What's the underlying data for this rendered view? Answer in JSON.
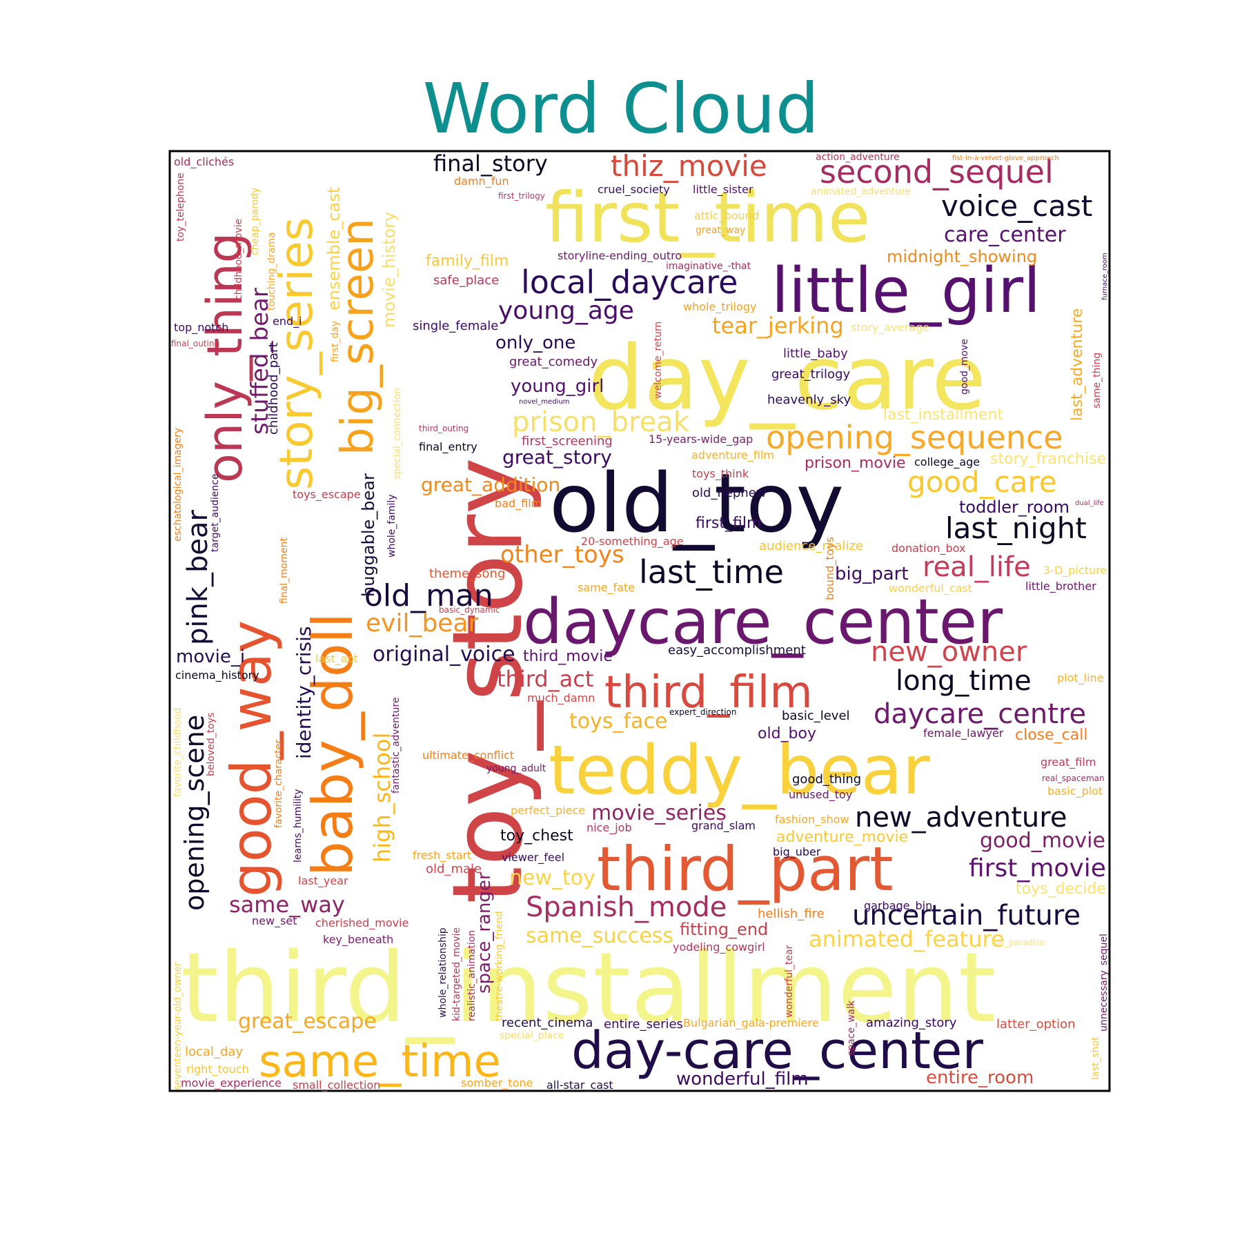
{
  "title": "Word Cloud",
  "chart_data": {
    "type": "word_cloud",
    "title": "Word Cloud",
    "colormap": "inferno",
    "frame": true,
    "words": [
      {
        "text": "toy_story",
        "weight": 100,
        "color": "#cf4446"
      },
      {
        "text": "third_installment",
        "weight": 90,
        "color": "#f3f58a"
      },
      {
        "text": "day_care",
        "weight": 82,
        "color": "#f3e55d"
      },
      {
        "text": "old_toy",
        "weight": 78,
        "color": "#120a30"
      },
      {
        "text": "first_time",
        "weight": 66,
        "color": "#f0e25a"
      },
      {
        "text": "teddy_bear",
        "weight": 64,
        "color": "#f8d13c"
      },
      {
        "text": "daycare_center",
        "weight": 60,
        "color": "#6a176e"
      },
      {
        "text": "little_girl",
        "weight": 58,
        "color": "#56106e"
      },
      {
        "text": "third_part",
        "weight": 55,
        "color": "#e35933"
      },
      {
        "text": "good_way",
        "weight": 54,
        "color": "#e5542f"
      },
      {
        "text": "baby_doll",
        "weight": 50,
        "color": "#f57d15"
      },
      {
        "text": "day-care_center",
        "weight": 46,
        "color": "#1f0c48"
      },
      {
        "text": "only_thing",
        "weight": 44,
        "color": "#bc3754"
      },
      {
        "text": "story_series",
        "weight": 42,
        "color": "#f9c932"
      },
      {
        "text": "big_screen",
        "weight": 42,
        "color": "#f7a21d"
      },
      {
        "text": "third_film",
        "weight": 40,
        "color": "#d84a3f"
      },
      {
        "text": "same_time",
        "weight": 40,
        "color": "#fbb61a"
      },
      {
        "text": "second_sequel",
        "weight": 30,
        "color": "#a52c60"
      },
      {
        "text": "local_daycare",
        "weight": 30,
        "color": "#2a0b5a"
      },
      {
        "text": "opening_sequence",
        "weight": 30,
        "color": "#f9a825"
      },
      {
        "text": "thiz_movie",
        "weight": 28,
        "color": "#d54a3b"
      },
      {
        "text": "last_time",
        "weight": 28,
        "color": "#0b0724"
      },
      {
        "text": "old_man",
        "weight": 28,
        "color": "#190b3f"
      },
      {
        "text": "pink_bear",
        "weight": 27,
        "color": "#150b37"
      },
      {
        "text": "prison_break",
        "weight": 26,
        "color": "#f6df6a"
      },
      {
        "text": "opening_scene",
        "weight": 26,
        "color": "#0d0827"
      },
      {
        "text": "voice_cast",
        "weight": 25,
        "color": "#120a2d"
      },
      {
        "text": "good_care",
        "weight": 25,
        "color": "#f8c830"
      },
      {
        "text": "last_night",
        "weight": 25,
        "color": "#0a0723"
      },
      {
        "text": "real_life",
        "weight": 25,
        "color": "#c5395a"
      },
      {
        "text": "new_owner",
        "weight": 25,
        "color": "#d0454c"
      },
      {
        "text": "long_time",
        "weight": 25,
        "color": "#0a0722"
      },
      {
        "text": "daycare_centre",
        "weight": 25,
        "color": "#6e196e"
      },
      {
        "text": "new_adventure",
        "weight": 25,
        "color": "#0c0826"
      },
      {
        "text": "Spanish_mode",
        "weight": 25,
        "color": "#a62d60"
      },
      {
        "text": "uncertain_future",
        "weight": 25,
        "color": "#1a0b3f"
      },
      {
        "text": "stuffed_bear",
        "weight": 22,
        "color": "#731a6e"
      },
      {
        "text": "young_age",
        "weight": 22,
        "color": "#4b0c6b"
      },
      {
        "text": "evil_bear",
        "weight": 22,
        "color": "#f7921a"
      },
      {
        "text": "other_toys",
        "weight": 22,
        "color": "#f48418"
      },
      {
        "text": "third_act",
        "weight": 22,
        "color": "#c83f4b"
      },
      {
        "text": "same_way",
        "weight": 22,
        "color": "#8d2369"
      },
      {
        "text": "great_escape",
        "weight": 22,
        "color": "#f8a722"
      },
      {
        "text": "identity_crisis",
        "weight": 21,
        "color": "#240c4f"
      },
      {
        "text": "high_school",
        "weight": 21,
        "color": "#fbb61a"
      },
      {
        "text": "wonderful_film",
        "weight": 20,
        "color": "#3d0965"
      },
      {
        "text": "entire_room",
        "weight": 20,
        "color": "#d84c3e"
      },
      {
        "text": "first_movie",
        "weight": 22,
        "color": "#5c126e"
      },
      {
        "text": "good_movie",
        "weight": 20,
        "color": "#7b1d6c"
      },
      {
        "text": "animated_feature",
        "weight": 22,
        "color": "#fcd247"
      },
      {
        "text": "movie_series",
        "weight": 21,
        "color": "#912568"
      },
      {
        "text": "new_toy",
        "weight": 21,
        "color": "#f9d342"
      },
      {
        "text": "same_success",
        "weight": 21,
        "color": "#f6d345"
      },
      {
        "text": "toys_face",
        "weight": 21,
        "color": "#f7b125"
      },
      {
        "text": "great_addition",
        "weight": 20,
        "color": "#f08a1a"
      },
      {
        "text": "great_story",
        "weight": 20,
        "color": "#3d0965"
      },
      {
        "text": "space_ranger",
        "weight": 17,
        "color": "#7b1d6c"
      },
      {
        "text": "huggable_bear",
        "weight": 16,
        "color": "#160b39"
      },
      {
        "text": "final_story",
        "weight": 22,
        "color": "#0a0722"
      },
      {
        "text": "care_center",
        "weight": 20,
        "color": "#56106e"
      },
      {
        "text": "midnight_showing",
        "weight": 17,
        "color": "#f08a1a"
      },
      {
        "text": "tear_jerking",
        "weight": 20,
        "color": "#f7a21d"
      },
      {
        "text": "only_one",
        "weight": 17,
        "color": "#280b54"
      },
      {
        "text": "young_girl",
        "weight": 17,
        "color": "#51106e"
      },
      {
        "text": "original_voice",
        "weight": 20,
        "color": "#240c4f"
      },
      {
        "text": "movie_i",
        "weight": 17,
        "color": "#240c4f"
      },
      {
        "text": "last_adventure",
        "weight": 16,
        "color": "#f7a91e"
      },
      {
        "text": "big_part",
        "weight": 16,
        "color": "#3a0963"
      },
      {
        "text": "toddler_room",
        "weight": 16,
        "color": "#380962"
      },
      {
        "text": "story_franchise",
        "weight": 15,
        "color": "#fbe36e"
      },
      {
        "text": "fitting_end",
        "weight": 16,
        "color": "#c83f4b"
      },
      {
        "text": "ensemble_cast",
        "weight": 16,
        "color": "#fbd145"
      },
      {
        "text": "movie_history",
        "weight": 16,
        "color": "#f9dd6b"
      },
      {
        "text": "childhood_part",
        "weight": 12,
        "color": "#2f0a5b"
      },
      {
        "text": "family_film",
        "weight": 14,
        "color": "#f7c73a"
      },
      {
        "text": "safe_place",
        "weight": 12,
        "color": "#b5365b"
      },
      {
        "text": "single_female",
        "weight": 12,
        "color": "#3d0965"
      },
      {
        "text": "great_comedy",
        "weight": 12,
        "color": "#6a176e"
      },
      {
        "text": "little_baby",
        "weight": 12,
        "color": "#56106e"
      },
      {
        "text": "great_trilogy",
        "weight": 12,
        "color": "#3a0963"
      },
      {
        "text": "heavenly_sky",
        "weight": 12,
        "color": "#2a0b5a"
      },
      {
        "text": "first_screening",
        "weight": 12,
        "color": "#b5365b"
      },
      {
        "text": "15-years-wide_gap",
        "weight": 11,
        "color": "#7b1d6c"
      },
      {
        "text": "adventure_film",
        "weight": 11,
        "color": "#f7b125"
      },
      {
        "text": "prison_movie",
        "weight": 14,
        "color": "#a52c60"
      },
      {
        "text": "college_age",
        "weight": 11,
        "color": "#0d0827"
      },
      {
        "text": "toys_think",
        "weight": 11,
        "color": "#c53c4d"
      },
      {
        "text": "old_nephew",
        "weight": 12,
        "color": "#280b54"
      },
      {
        "text": "first_film",
        "weight": 14,
        "color": "#3d0965"
      },
      {
        "text": "audience_realize",
        "weight": 12,
        "color": "#f8c42e"
      },
      {
        "text": "20-something_age",
        "weight": 11,
        "color": "#d0454c"
      },
      {
        "text": "donation_box",
        "weight": 11,
        "color": "#c53c4d"
      },
      {
        "text": "3-D_picture",
        "weight": 11,
        "color": "#f6d345"
      },
      {
        "text": "little_brother",
        "weight": 11,
        "color": "#6e196e"
      },
      {
        "text": "wonderful_cast",
        "weight": 11,
        "color": "#fbd145"
      },
      {
        "text": "theme_song",
        "weight": 11,
        "color": "#e5542f"
      },
      {
        "text": "same_fate",
        "weight": 11,
        "color": "#f6a41d"
      },
      {
        "text": "bound_toys",
        "weight": 11,
        "color": "#ef8318"
      },
      {
        "text": "easy_accomplishment",
        "weight": 11,
        "color": "#1a0b3f"
      },
      {
        "text": "third_movie",
        "weight": 14,
        "color": "#5c126e"
      },
      {
        "text": "plot_line",
        "weight": 11,
        "color": "#f7b125"
      },
      {
        "text": "much_damn",
        "weight": 11,
        "color": "#cf4446"
      },
      {
        "text": "expert_direction",
        "weight": 9,
        "color": "#0d0827"
      },
      {
        "text": "basic_level",
        "weight": 12,
        "color": "#0d0827"
      },
      {
        "text": "old_boy",
        "weight": 14,
        "color": "#51106e"
      },
      {
        "text": "female_lawyer",
        "weight": 11,
        "color": "#6e196e"
      },
      {
        "text": "close_call",
        "weight": 14,
        "color": "#f57d15"
      },
      {
        "text": "great_film",
        "weight": 11,
        "color": "#c5395a"
      },
      {
        "text": "real_spaceman",
        "weight": 9,
        "color": "#a52c60"
      },
      {
        "text": "basic_plot",
        "weight": 11,
        "color": "#f7b125"
      },
      {
        "text": "good_thing",
        "weight": 12,
        "color": "#0a0722"
      },
      {
        "text": "unused_toy",
        "weight": 11,
        "color": "#6e196e"
      },
      {
        "text": "fashion_show",
        "weight": 11,
        "color": "#f8a722"
      },
      {
        "text": "grand_slam",
        "weight": 11,
        "color": "#3d0965"
      },
      {
        "text": "adventure_movie",
        "weight": 14,
        "color": "#f8c830"
      },
      {
        "text": "big_uber",
        "weight": 11,
        "color": "#240c4f"
      },
      {
        "text": "toys_decide",
        "weight": 14,
        "color": "#fbe36e"
      },
      {
        "text": "garbage_bin",
        "weight": 11,
        "color": "#3d0965"
      },
      {
        "text": "hellish_fire",
        "weight": 12,
        "color": "#f57d15"
      },
      {
        "text": "yodeling_cowgirl",
        "weight": 11,
        "color": "#b5365b"
      },
      {
        "text": "toy_paradise",
        "weight": 9,
        "color": "#fbe36e"
      },
      {
        "text": "amazing_story",
        "weight": 12,
        "color": "#3d0965"
      },
      {
        "text": "latter_option",
        "weight": 12,
        "color": "#d84c3e"
      },
      {
        "text": "entire_series",
        "weight": 12,
        "color": "#3d0965"
      },
      {
        "text": "Bulgarian_gala-premiere",
        "weight": 11,
        "color": "#f8a722"
      },
      {
        "text": "recent_cinema",
        "weight": 12,
        "color": "#240c4f"
      },
      {
        "text": "special_place",
        "weight": 11,
        "color": "#f8dd6b"
      },
      {
        "text": "somber_tone",
        "weight": 11,
        "color": "#f6a41d"
      },
      {
        "text": "all-star_cast",
        "weight": 11,
        "color": "#240c4f"
      },
      {
        "text": "small_collection",
        "weight": 11,
        "color": "#c83f4b"
      },
      {
        "text": "movie_experience",
        "weight": 11,
        "color": "#a52c60"
      },
      {
        "text": "right_touch",
        "weight": 11,
        "color": "#f8c42e"
      },
      {
        "text": "local_day",
        "weight": 12,
        "color": "#f7a21d"
      },
      {
        "text": "new_set",
        "weight": 11,
        "color": "#6e196e"
      },
      {
        "text": "cherished_movie",
        "weight": 11,
        "color": "#c83f4b"
      },
      {
        "text": "key_beneath",
        "weight": 11,
        "color": "#7b1d6c"
      },
      {
        "text": "last_year",
        "weight": 11,
        "color": "#cf4446"
      },
      {
        "text": "fresh_start",
        "weight": 11,
        "color": "#f7a21d"
      },
      {
        "text": "old_male",
        "weight": 12,
        "color": "#d0454c"
      },
      {
        "text": "viewer_feel",
        "weight": 11,
        "color": "#3d0965"
      },
      {
        "text": "toy_chest",
        "weight": 14,
        "color": "#0a0722"
      },
      {
        "text": "nice_job",
        "weight": 11,
        "color": "#b5365b"
      },
      {
        "text": "perfect_piece",
        "weight": 11,
        "color": "#f7b125"
      },
      {
        "text": "ultimate_conflict",
        "weight": 11,
        "color": "#f57d15"
      },
      {
        "text": "young_adult",
        "weight": 11,
        "color": "#6e196e"
      },
      {
        "text": "final_entry",
        "weight": 11,
        "color": "#0a0722"
      },
      {
        "text": "third_outing",
        "weight": 9,
        "color": "#b5365b"
      },
      {
        "text": "bad_film",
        "weight": 11,
        "color": "#f57d15"
      },
      {
        "text": "toys_escape",
        "weight": 11,
        "color": "#c53c4d"
      },
      {
        "text": "cinema_history",
        "weight": 12,
        "color": "#0a0722"
      },
      {
        "text": "last_act",
        "weight": 11,
        "color": "#f8c830"
      },
      {
        "text": "basic_dynamic",
        "weight": 9,
        "color": "#c53c4d"
      },
      {
        "text": "top_notch",
        "weight": 11,
        "color": "#3d0965"
      },
      {
        "text": "final_outing",
        "weight": 9,
        "color": "#c83f4b"
      },
      {
        "text": "end_i",
        "weight": 11,
        "color": "#3d0965"
      },
      {
        "text": "old_clichés",
        "weight": 12,
        "color": "#a52c60"
      },
      {
        "text": "damn_fun",
        "weight": 12,
        "color": "#f57d15"
      },
      {
        "text": "first_trilogy",
        "weight": 9,
        "color": "#b5365b"
      },
      {
        "text": "cruel_society",
        "weight": 12,
        "color": "#3d0965"
      },
      {
        "text": "little_sister",
        "weight": 12,
        "color": "#56106e"
      },
      {
        "text": "action_adventure",
        "weight": 11,
        "color": "#b5365b"
      },
      {
        "text": "fist-in-a-velvet-glove_approach",
        "weight": 8,
        "color": "#f57d15"
      },
      {
        "text": "animated_adventure",
        "weight": 11,
        "color": "#f8dd6b"
      },
      {
        "text": "attic_bound",
        "weight": 12,
        "color": "#f8d13c"
      },
      {
        "text": "great_way",
        "weight": 11,
        "color": "#f7a21d"
      },
      {
        "text": "storyline-ending_outro",
        "weight": 12,
        "color": "#6e196e"
      },
      {
        "text": "imaginative_-that",
        "weight": 11,
        "color": "#a52c60"
      },
      {
        "text": "whole_trilogy",
        "weight": 11,
        "color": "#f7a21d"
      },
      {
        "text": "story_average",
        "weight": 11,
        "color": "#fbe36e"
      },
      {
        "text": "last_installment",
        "weight": 14,
        "color": "#fbe36e"
      },
      {
        "text": "novel_medium",
        "weight": 8,
        "color": "#3d0965"
      },
      {
        "text": "furnace_room",
        "weight": 8,
        "color": "#3d0965"
      },
      {
        "text": "dual_life",
        "weight": 8,
        "color": "#a52c60"
      },
      {
        "text": "same_thing",
        "weight": 11,
        "color": "#c53c4d"
      },
      {
        "text": "good_move",
        "weight": 11,
        "color": "#56106e"
      },
      {
        "text": "welcome_return",
        "weight": 11,
        "color": "#d0454c"
      },
      {
        "text": "first_day",
        "weight": 11,
        "color": "#f7a21d"
      },
      {
        "text": "special_connection",
        "weight": 11,
        "color": "#f8dd6b"
      },
      {
        "text": "whole_family",
        "weight": 11,
        "color": "#3d0965"
      },
      {
        "text": "fantastic_adventure",
        "weight": 11,
        "color": "#6e196e"
      },
      {
        "text": "touching_drama",
        "weight": 11,
        "color": "#f8a722"
      },
      {
        "text": "cheap_parody",
        "weight": 11,
        "color": "#f8c830"
      },
      {
        "text": "childhood_movie",
        "weight": 11,
        "color": "#c83f4b"
      },
      {
        "text": "toy_telephone",
        "weight": 11,
        "color": "#b5365b"
      },
      {
        "text": "eschatological_imagery",
        "weight": 11,
        "color": "#f57d15"
      },
      {
        "text": "target_audience",
        "weight": 11,
        "color": "#3d0965"
      },
      {
        "text": "final_moment",
        "weight": 11,
        "color": "#f57d15"
      },
      {
        "text": "favorite_childhood",
        "weight": 11,
        "color": "#f8dd6b"
      },
      {
        "text": "beloved_toys",
        "weight": 11,
        "color": "#c53c4d"
      },
      {
        "text": "favorite_character",
        "weight": 11,
        "color": "#f57d15"
      },
      {
        "text": "learns_humility",
        "weight": 11,
        "color": "#3d0965"
      },
      {
        "text": "whole_relationship",
        "weight": 11,
        "color": "#240c4f"
      },
      {
        "text": "kid-targeted_movie",
        "weight": 11,
        "color": "#b5365b"
      },
      {
        "text": "realistic_animation",
        "weight": 11,
        "color": "#a52c60"
      },
      {
        "text": "theatre-working_friend",
        "weight": 11,
        "color": "#f8c830"
      },
      {
        "text": "wonderful_tear",
        "weight": 11,
        "color": "#c53c4d"
      },
      {
        "text": "space_walk",
        "weight": 11,
        "color": "#a52c60"
      },
      {
        "text": "seventeen-year-old_owner",
        "weight": 11,
        "color": "#f8d13c"
      },
      {
        "text": "unnecessary_sequel",
        "weight": 11,
        "color": "#6e196e"
      },
      {
        "text": "last_shot",
        "weight": 11,
        "color": "#f8c830"
      }
    ]
  }
}
